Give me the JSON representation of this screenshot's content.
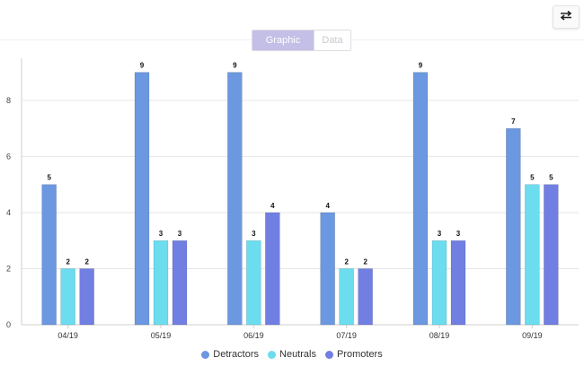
{
  "toolbar": {
    "swap_icon": "swap-arrows-icon",
    "view_toggle": {
      "graphic_label": "Graphic",
      "data_label": "Data",
      "selected": "Graphic"
    }
  },
  "chart_data": {
    "type": "bar",
    "categories": [
      "04/19",
      "05/19",
      "06/19",
      "07/19",
      "08/19",
      "09/19"
    ],
    "series": [
      {
        "name": "Detractors",
        "values": [
          5,
          9,
          9,
          4,
          9,
          7
        ],
        "color": "#6b98e0"
      },
      {
        "name": "Neutrals",
        "values": [
          2,
          3,
          3,
          2,
          3,
          5
        ],
        "color": "#6cdcef"
      },
      {
        "name": "Promoters",
        "values": [
          2,
          3,
          4,
          2,
          3,
          5
        ],
        "color": "#727fe2"
      }
    ],
    "ylim": [
      0,
      9.5
    ],
    "yticks": [
      0,
      2,
      4,
      6,
      8
    ],
    "data_labels": true,
    "grid": true,
    "legend_position": "bottom-center",
    "title": "",
    "xlabel": "",
    "ylabel": ""
  }
}
